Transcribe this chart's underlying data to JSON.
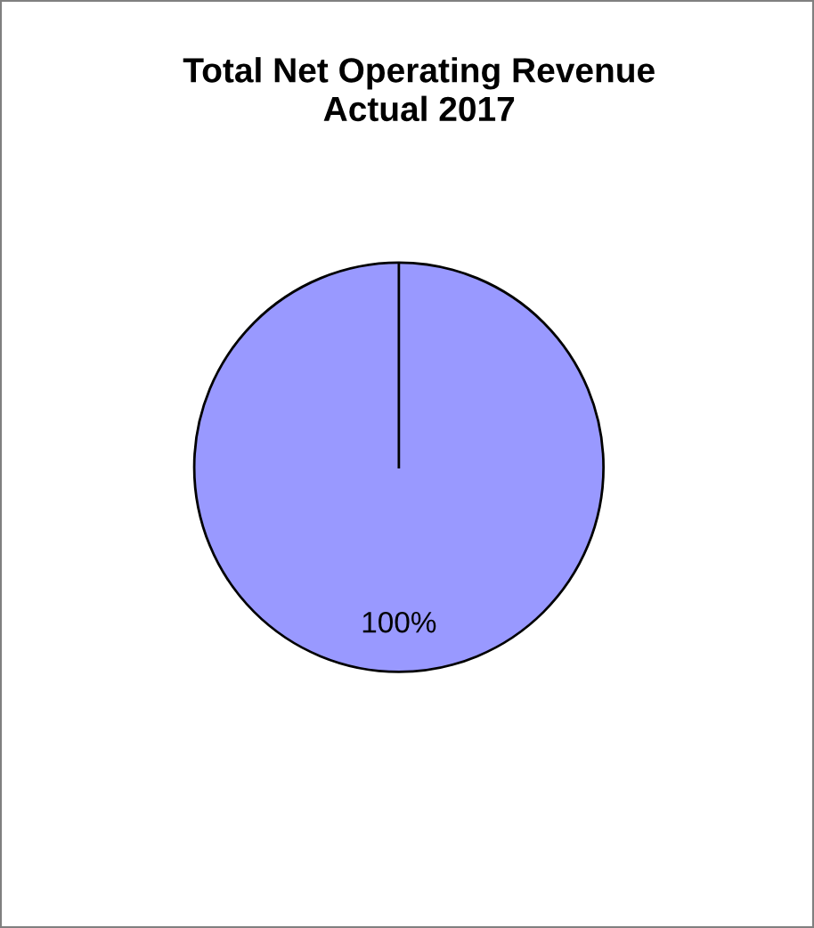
{
  "chart_data": {
    "type": "pie",
    "title": "Total Net Operating Revenue\nActual 2017",
    "categories": [
      null
    ],
    "values": [
      100
    ],
    "colors": [
      "#9999ff"
    ],
    "value_labels": [
      "100%"
    ],
    "legend": false
  }
}
